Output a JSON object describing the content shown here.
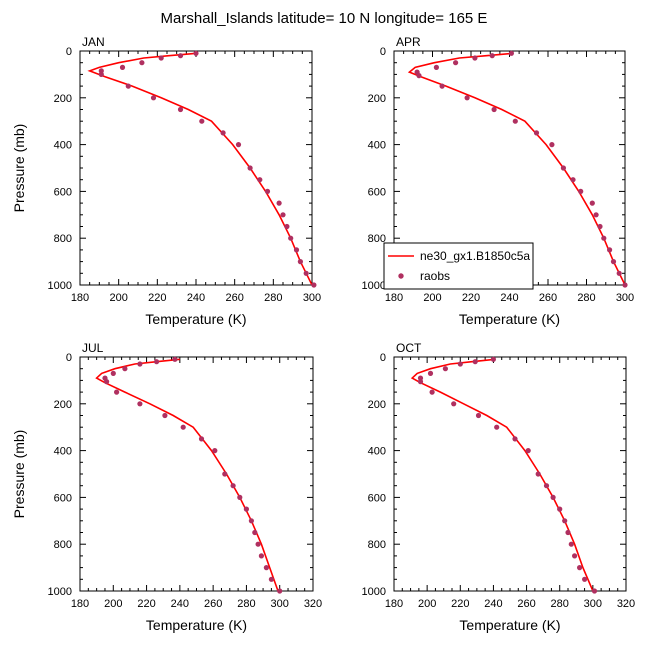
{
  "figure": {
    "title": "Marshall_Islands  latitude= 10 N longitude= 165 E",
    "colors": {
      "model": "#ff0000",
      "obs": "#b03060",
      "axis": "#000000"
    },
    "legend": {
      "model_label": "ne30_gx1.B1850c5a",
      "obs_label": "raobs",
      "placement": "lower-left of APR panel"
    }
  },
  "chart_data": [
    {
      "type": "line",
      "title": "JAN",
      "xlabel": "Temperature (K)",
      "ylabel": "Pressure (mb)",
      "xlim": [
        180,
        300
      ],
      "ylim": [
        1000,
        0
      ],
      "xticks": [
        180,
        200,
        220,
        240,
        260,
        280,
        300
      ],
      "yticks": [
        0,
        200,
        400,
        600,
        800,
        1000
      ],
      "series": [
        {
          "name": "ne30_gx1.B1850c5a",
          "kind": "line",
          "x": [
            240.3,
            226,
            213,
            200,
            190,
            185,
            193,
            207,
            222,
            236,
            248,
            259,
            268,
            276,
            283,
            289,
            294,
            300
          ],
          "y": [
            10,
            20,
            30,
            50,
            70,
            85,
            110,
            150,
            200,
            250,
            300,
            400,
            500,
            600,
            700,
            800,
            900,
            1000
          ]
        },
        {
          "name": "raobs",
          "kind": "scatter",
          "x": [
            240,
            232,
            222,
            212,
            202,
            191,
            191,
            205,
            218,
            232,
            243,
            254,
            262,
            268,
            273,
            277,
            283,
            285,
            287,
            289,
            292,
            294,
            297,
            301
          ],
          "y": [
            10,
            20,
            30,
            50,
            70,
            85,
            100,
            150,
            200,
            250,
            300,
            350,
            400,
            500,
            550,
            600,
            650,
            700,
            750,
            800,
            850,
            900,
            950,
            1000
          ]
        }
      ]
    },
    {
      "type": "line",
      "title": "APR",
      "xlabel": "Temperature (K)",
      "ylabel": "",
      "xlim": [
        180,
        300
      ],
      "ylim": [
        1000,
        0
      ],
      "xticks": [
        180,
        200,
        220,
        240,
        260,
        280,
        300
      ],
      "yticks": [
        0,
        200,
        400,
        600,
        800,
        1000
      ],
      "series": [
        {
          "name": "ne30_gx1.B1850c5a",
          "kind": "line",
          "x": [
            242,
            228,
            214,
            201,
            191,
            188,
            194,
            207,
            222,
            236,
            248,
            259,
            268,
            276,
            283,
            289,
            294,
            300
          ],
          "y": [
            10,
            20,
            30,
            50,
            70,
            90,
            110,
            150,
            200,
            250,
            300,
            400,
            500,
            600,
            700,
            800,
            900,
            1000
          ]
        },
        {
          "name": "raobs",
          "kind": "scatter",
          "x": [
            241,
            231,
            222,
            212,
            202,
            192,
            193,
            205,
            218,
            232,
            243,
            254,
            262,
            268,
            273,
            277,
            283,
            285,
            287,
            289,
            292,
            294,
            297,
            300
          ],
          "y": [
            10,
            20,
            30,
            50,
            70,
            90,
            105,
            150,
            200,
            250,
            300,
            350,
            400,
            500,
            550,
            600,
            650,
            700,
            750,
            800,
            850,
            900,
            950,
            1000
          ]
        }
      ]
    },
    {
      "type": "line",
      "title": "JUL",
      "xlabel": "Temperature (K)",
      "ylabel": "Pressure (mb)",
      "xlim": [
        180,
        320
      ],
      "ylim": [
        1000,
        0
      ],
      "xticks": [
        180,
        200,
        220,
        240,
        260,
        280,
        300,
        320
      ],
      "yticks": [
        0,
        200,
        400,
        600,
        800,
        1000
      ],
      "series": [
        {
          "name": "ne30_gx1.B1850c5a",
          "kind": "line",
          "x": [
            240,
            226,
            213,
            201,
            193,
            190,
            195,
            207,
            222,
            236,
            248,
            259,
            268,
            276,
            283,
            289,
            294,
            299
          ],
          "y": [
            10,
            20,
            30,
            50,
            70,
            90,
            110,
            150,
            200,
            250,
            300,
            400,
            500,
            600,
            700,
            800,
            900,
            1000
          ]
        },
        {
          "name": "raobs",
          "kind": "scatter",
          "x": [
            237,
            226,
            216,
            207,
            200,
            195,
            196,
            202,
            216,
            231,
            242,
            253,
            261,
            267,
            272,
            276,
            280,
            283,
            285,
            287,
            289,
            292,
            295,
            300
          ],
          "y": [
            10,
            20,
            30,
            50,
            70,
            90,
            105,
            150,
            200,
            250,
            300,
            350,
            400,
            500,
            550,
            600,
            650,
            700,
            750,
            800,
            850,
            900,
            950,
            1000
          ]
        }
      ]
    },
    {
      "type": "line",
      "title": "OCT",
      "xlabel": "Temperature (K)",
      "ylabel": "",
      "xlim": [
        180,
        320
      ],
      "ylim": [
        1000,
        0
      ],
      "xticks": [
        180,
        200,
        220,
        240,
        260,
        280,
        300,
        320
      ],
      "yticks": [
        0,
        200,
        400,
        600,
        800,
        1000
      ],
      "series": [
        {
          "name": "ne30_gx1.B1850c5a",
          "kind": "line",
          "x": [
            241,
            227,
            214,
            202,
            194,
            191,
            196,
            208,
            222,
            236,
            248,
            259,
            268,
            276,
            283,
            289,
            294,
            300
          ],
          "y": [
            10,
            20,
            30,
            50,
            70,
            90,
            110,
            150,
            200,
            250,
            300,
            400,
            500,
            600,
            700,
            800,
            900,
            1000
          ]
        },
        {
          "name": "raobs",
          "kind": "scatter",
          "x": [
            240,
            229,
            220,
            211,
            202,
            196,
            196,
            203,
            216,
            231,
            242,
            253,
            261,
            267,
            272,
            276,
            280,
            283,
            285,
            287,
            289,
            292,
            295,
            301
          ],
          "y": [
            10,
            20,
            30,
            50,
            70,
            90,
            105,
            150,
            200,
            250,
            300,
            350,
            400,
            500,
            550,
            600,
            650,
            700,
            750,
            800,
            850,
            900,
            950,
            1000
          ]
        }
      ]
    }
  ]
}
